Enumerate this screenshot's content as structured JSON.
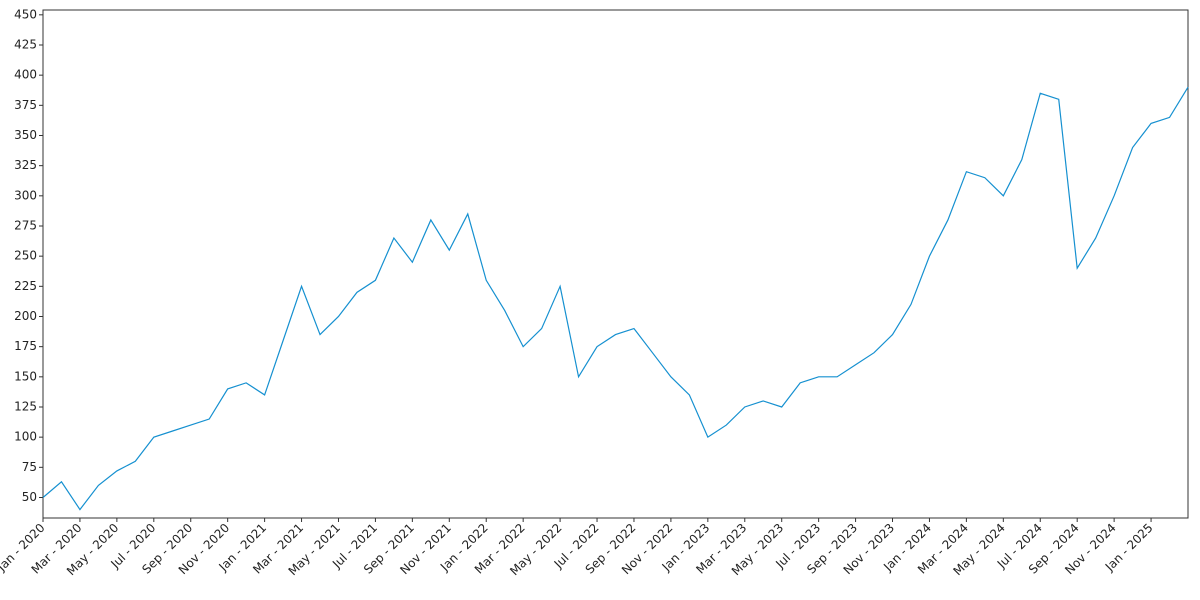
{
  "chart_data": {
    "type": "line",
    "x": [
      "2020-01",
      "2020-02",
      "2020-03",
      "2020-04",
      "2020-05",
      "2020-06",
      "2020-07",
      "2020-08",
      "2020-09",
      "2020-10",
      "2020-11",
      "2020-12",
      "2021-01",
      "2021-02",
      "2021-03",
      "2021-04",
      "2021-05",
      "2021-06",
      "2021-07",
      "2021-08",
      "2021-09",
      "2021-10",
      "2021-11",
      "2021-12",
      "2022-01",
      "2022-02",
      "2022-03",
      "2022-04",
      "2022-05",
      "2022-06",
      "2022-07",
      "2022-08",
      "2022-09",
      "2022-10",
      "2022-11",
      "2022-12",
      "2023-01",
      "2023-02",
      "2023-03",
      "2023-04",
      "2023-05",
      "2023-06",
      "2023-07",
      "2023-08",
      "2023-09",
      "2023-10",
      "2023-11",
      "2023-12",
      "2024-01",
      "2024-02",
      "2024-03",
      "2024-04",
      "2024-05",
      "2024-06",
      "2024-07",
      "2024-08",
      "2024-09",
      "2024-10",
      "2024-11",
      "2024-12",
      "2025-01",
      "2025-02",
      "2025-03"
    ],
    "series": [
      {
        "color": "#1590d0",
        "values": [
          50,
          63,
          40,
          60,
          72,
          80,
          100,
          105,
          110,
          115,
          140,
          145,
          135,
          180,
          225,
          185,
          200,
          220,
          230,
          265,
          245,
          280,
          255,
          285,
          230,
          205,
          175,
          190,
          225,
          150,
          175,
          185,
          190,
          170,
          150,
          135,
          100,
          110,
          125,
          130,
          125,
          145,
          150,
          150,
          160,
          170,
          185,
          210,
          250,
          280,
          320,
          315,
          300,
          330,
          385,
          380,
          240,
          265,
          300,
          340,
          360,
          365,
          390
        ]
      }
    ],
    "xlim": [
      "2020-01",
      "2025-03"
    ],
    "xticks": [
      {
        "value": "2020-01",
        "label": "Jan - 2020"
      },
      {
        "value": "2020-03",
        "label": "Mar - 2020"
      },
      {
        "value": "2020-05",
        "label": "May - 2020"
      },
      {
        "value": "2020-07",
        "label": "Jul - 2020"
      },
      {
        "value": "2020-09",
        "label": "Sep - 2020"
      },
      {
        "value": "2020-11",
        "label": "Nov - 2020"
      },
      {
        "value": "2021-01",
        "label": "Jan - 2021"
      },
      {
        "value": "2021-03",
        "label": "Mar - 2021"
      },
      {
        "value": "2021-05",
        "label": "May - 2021"
      },
      {
        "value": "2021-07",
        "label": "Jul - 2021"
      },
      {
        "value": "2021-09",
        "label": "Sep - 2021"
      },
      {
        "value": "2021-11",
        "label": "Nov - 2021"
      },
      {
        "value": "2022-01",
        "label": "Jan - 2022"
      },
      {
        "value": "2022-03",
        "label": "Mar - 2022"
      },
      {
        "value": "2022-05",
        "label": "May - 2022"
      },
      {
        "value": "2022-07",
        "label": "Jul - 2022"
      },
      {
        "value": "2022-09",
        "label": "Sep - 2022"
      },
      {
        "value": "2022-11",
        "label": "Nov - 2022"
      },
      {
        "value": "2023-01",
        "label": "Jan - 2023"
      },
      {
        "value": "2023-03",
        "label": "Mar - 2023"
      },
      {
        "value": "2023-05",
        "label": "May - 2023"
      },
      {
        "value": "2023-07",
        "label": "Jul - 2023"
      },
      {
        "value": "2023-09",
        "label": "Sep - 2023"
      },
      {
        "value": "2023-11",
        "label": "Nov - 2023"
      },
      {
        "value": "2024-01",
        "label": "Jan - 2024"
      },
      {
        "value": "2024-03",
        "label": "Mar - 2024"
      },
      {
        "value": "2024-05",
        "label": "May - 2024"
      },
      {
        "value": "2024-07",
        "label": "Jul - 2024"
      },
      {
        "value": "2024-09",
        "label": "Sep - 2024"
      },
      {
        "value": "2024-11",
        "label": "Nov - 2024"
      },
      {
        "value": "2025-01",
        "label": "Jan - 2025"
      }
    ],
    "ylim": [
      33,
      454
    ],
    "yticks": [
      50,
      75,
      100,
      125,
      150,
      175,
      200,
      225,
      250,
      275,
      300,
      325,
      350,
      375,
      400,
      425,
      450
    ],
    "grid": false
  }
}
